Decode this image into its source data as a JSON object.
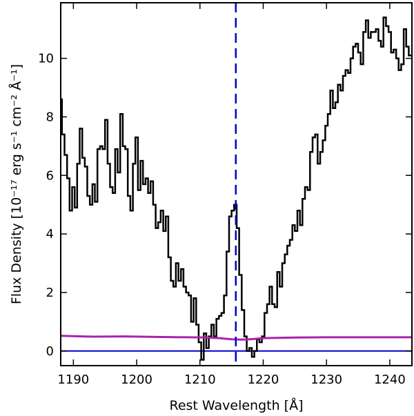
{
  "chart_data": {
    "type": "line",
    "title": "",
    "xlabel": "Rest Wavelength [Å]",
    "ylabel": "Flux Density [10⁻¹⁷ erg s⁻¹ cm⁻² Å⁻¹]",
    "xlim": [
      1188,
      1243.5
    ],
    "ylim": [
      -0.5,
      11.9
    ],
    "xticks": [
      1190,
      1200,
      1210,
      1220,
      1230,
      1240
    ],
    "xtick_labels": [
      "1190",
      "1200",
      "1210",
      "1220",
      "1230",
      "1240"
    ],
    "yticks": [
      0,
      2,
      4,
      6,
      8,
      10
    ],
    "ytick_labels": [
      "0",
      "2",
      "4",
      "6",
      "8",
      "10"
    ],
    "grid": false,
    "vline": {
      "x": 1215.67,
      "color": "#0000cc",
      "style": "dashed"
    },
    "hline": {
      "y": 0,
      "color": "#0000cc"
    },
    "series": [
      {
        "color": "#000000",
        "style": "steps",
        "x": [
          1188.0,
          1188.4,
          1188.8,
          1189.2,
          1189.6,
          1190.0,
          1190.4,
          1190.8,
          1191.2,
          1191.6,
          1192.0,
          1192.4,
          1192.8,
          1193.2,
          1193.6,
          1194.0,
          1194.4,
          1194.8,
          1195.2,
          1195.6,
          1196.0,
          1196.4,
          1196.8,
          1197.2,
          1197.6,
          1198.0,
          1198.4,
          1198.8,
          1199.2,
          1199.6,
          1200.0,
          1200.4,
          1200.8,
          1201.2,
          1201.6,
          1202.0,
          1202.4,
          1202.8,
          1203.2,
          1203.6,
          1204.0,
          1204.4,
          1204.8,
          1205.2,
          1205.6,
          1206.0,
          1206.4,
          1206.8,
          1207.2,
          1207.6,
          1208.0,
          1208.4,
          1208.8,
          1209.2,
          1209.6,
          1210.0,
          1210.4,
          1210.8,
          1211.2,
          1211.6,
          1212.0,
          1212.4,
          1212.8,
          1213.2,
          1213.6,
          1214.0,
          1214.4,
          1214.8,
          1215.2,
          1215.6,
          1216.0,
          1216.4,
          1216.8,
          1217.2,
          1217.6,
          1218.0,
          1218.4,
          1218.8,
          1219.2,
          1219.6,
          1220.0,
          1220.4,
          1220.8,
          1221.2,
          1221.6,
          1222.0,
          1222.4,
          1222.8,
          1223.2,
          1223.6,
          1224.0,
          1224.4,
          1224.8,
          1225.2,
          1225.6,
          1226.0,
          1226.4,
          1226.8,
          1227.2,
          1227.6,
          1228.0,
          1228.4,
          1228.8,
          1229.2,
          1229.6,
          1230.0,
          1230.4,
          1230.8,
          1231.2,
          1231.6,
          1232.0,
          1232.4,
          1232.8,
          1233.2,
          1233.6,
          1234.0,
          1234.4,
          1234.8,
          1235.2,
          1235.6,
          1236.0,
          1236.4,
          1236.8,
          1237.2,
          1237.6,
          1238.0,
          1238.4,
          1238.8,
          1239.2,
          1239.6,
          1240.0,
          1240.4,
          1240.8,
          1241.2,
          1241.6,
          1242.0,
          1242.4,
          1242.8,
          1243.2
        ],
        "y": [
          8.6,
          7.4,
          6.7,
          5.9,
          4.8,
          5.6,
          4.9,
          6.4,
          7.6,
          6.6,
          6.3,
          5.3,
          5.0,
          5.7,
          5.1,
          6.9,
          7.0,
          6.9,
          7.9,
          6.4,
          5.6,
          5.4,
          6.9,
          6.1,
          8.1,
          7.0,
          6.9,
          5.3,
          4.8,
          6.4,
          7.3,
          5.5,
          6.5,
          5.7,
          5.9,
          5.4,
          5.8,
          5.0,
          4.2,
          4.4,
          4.8,
          4.1,
          4.6,
          3.2,
          2.4,
          2.2,
          3.0,
          2.4,
          2.8,
          2.2,
          2.0,
          1.9,
          1.0,
          1.8,
          0.9,
          0.3,
          -0.3,
          0.6,
          0.1,
          0.5,
          0.9,
          0.5,
          1.1,
          1.2,
          1.3,
          1.9,
          3.4,
          4.6,
          4.8,
          5.0,
          4.2,
          2.6,
          1.4,
          0.5,
          0.0,
          0.1,
          -0.2,
          0.0,
          0.4,
          0.3,
          0.5,
          1.3,
          1.6,
          2.2,
          1.6,
          1.5,
          2.7,
          2.2,
          3.0,
          3.3,
          3.6,
          3.8,
          4.3,
          4.1,
          4.8,
          4.3,
          5.2,
          5.6,
          5.5,
          6.8,
          7.3,
          7.4,
          6.4,
          6.8,
          7.2,
          7.7,
          8.1,
          8.9,
          8.3,
          8.5,
          9.1,
          8.9,
          9.4,
          9.6,
          9.5,
          10.0,
          10.4,
          10.5,
          10.2,
          9.8,
          10.9,
          11.3,
          10.7,
          10.9,
          10.9,
          11.0,
          10.6,
          10.4,
          11.4,
          11.1,
          10.9,
          10.2,
          10.3,
          10.0,
          9.6,
          9.8,
          11.0,
          10.4,
          10.1
        ]
      },
      {
        "color": "#aa22aa",
        "style": "line",
        "x": [
          1188,
          1193,
          1198,
          1203,
          1208,
          1211,
          1213,
          1215,
          1216.5,
          1218,
          1220,
          1225,
          1230,
          1235,
          1240,
          1243.5
        ],
        "y": [
          0.52,
          0.49,
          0.5,
          0.48,
          0.47,
          0.46,
          0.44,
          0.4,
          0.39,
          0.4,
          0.44,
          0.46,
          0.47,
          0.47,
          0.47,
          0.47
        ]
      }
    ]
  }
}
